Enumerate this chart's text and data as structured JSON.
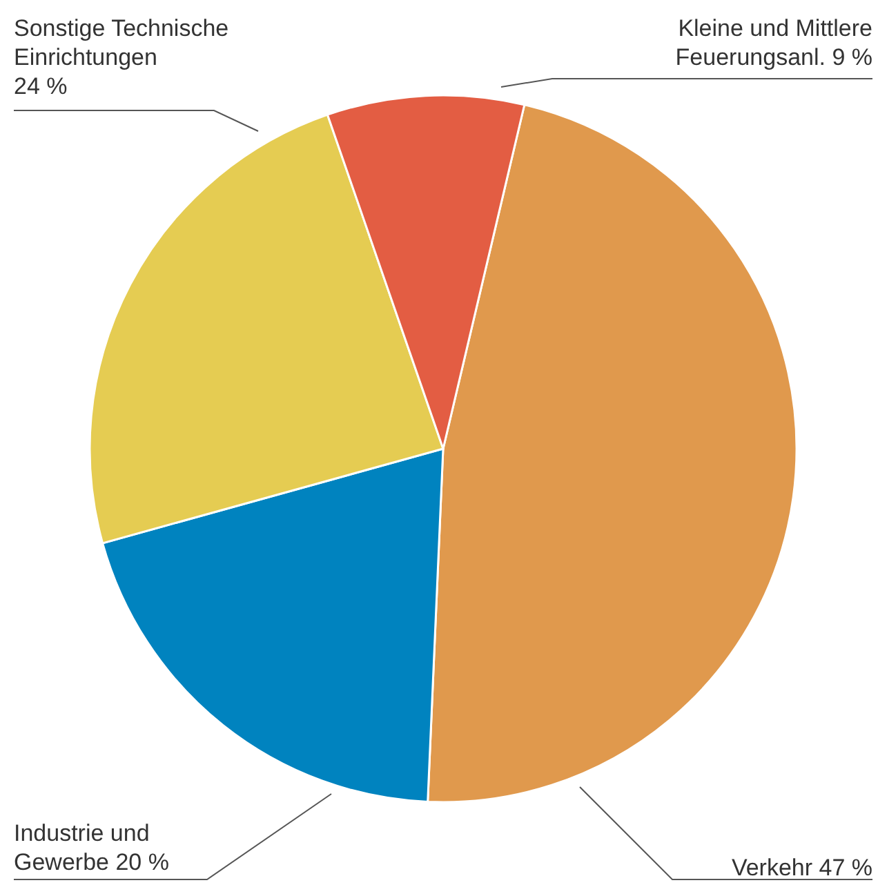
{
  "chart_data": {
    "type": "pie",
    "categories": [
      "Verkehr",
      "Industrie und Gewerbe",
      "Sonstige Technische Einrichtungen",
      "Kleine und Mittlere Feuerungsanl."
    ],
    "values": [
      47,
      20,
      24,
      9
    ],
    "colors": [
      "#e0994d",
      "#0083bf",
      "#e5cc52",
      "#e35d43"
    ],
    "value_labels": [
      "47 %",
      "20 %",
      "24 %",
      "9 %"
    ]
  }
}
